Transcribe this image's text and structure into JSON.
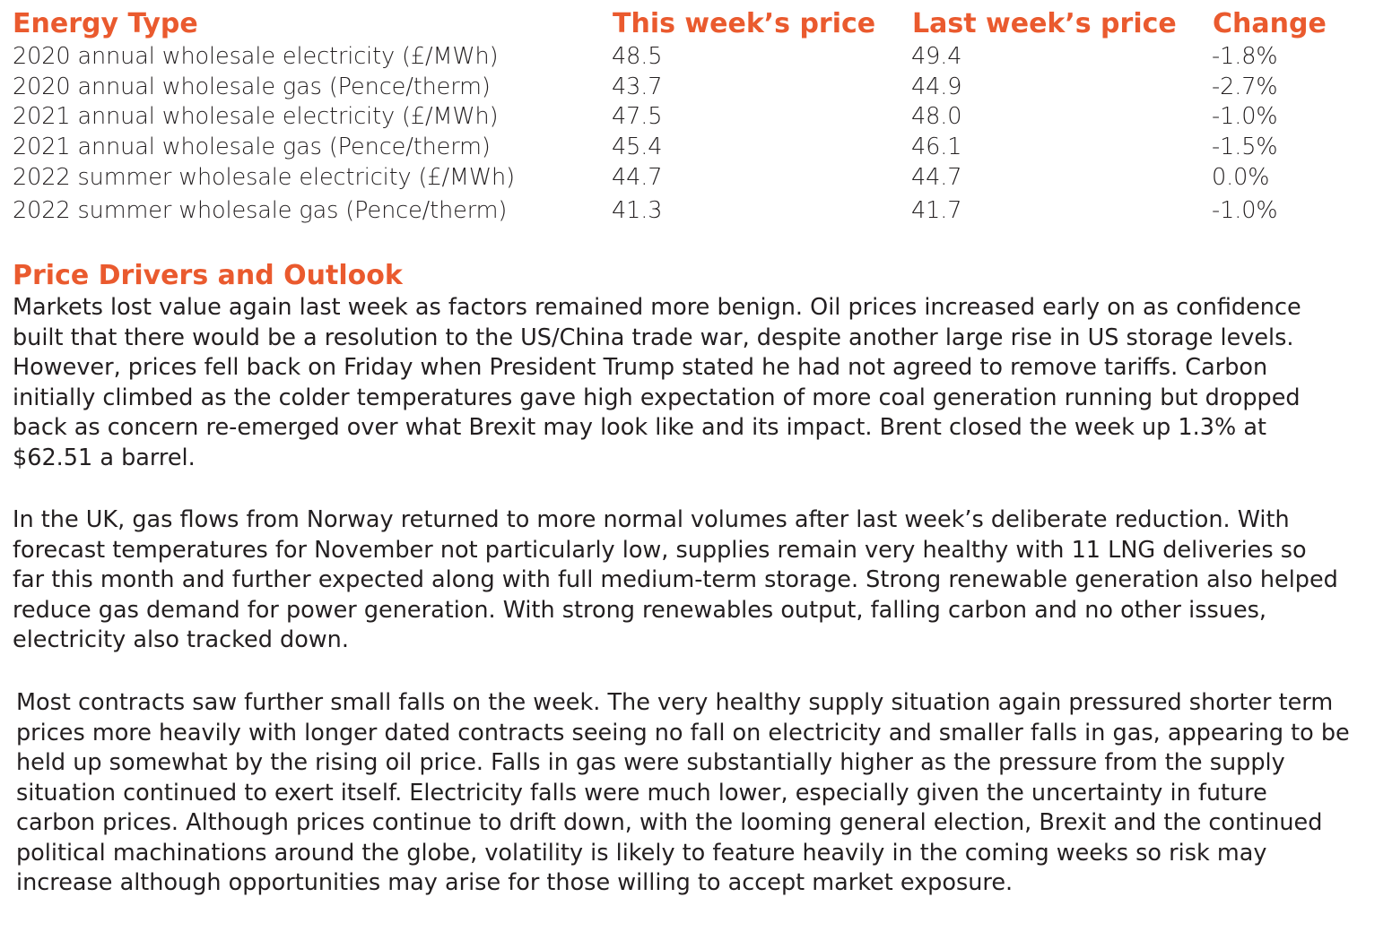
{
  "table": {
    "headers": [
      "Energy Type",
      "This week’s price",
      "Last week’s price",
      "Change"
    ],
    "rows": [
      [
        "2020 annual wholesale electricity (£/MWh)",
        "48.5",
        "49.4",
        "-1.8%"
      ],
      [
        "2020 annual wholesale gas (Pence/therm)",
        "43.7",
        "44.9",
        "-2.7%"
      ],
      [
        "2021 annual wholesale electricity (£/MWh)",
        "47.5",
        "48.0",
        "-1.0%"
      ],
      [
        "2021 annual wholesale gas (Pence/therm)",
        "45.4",
        "46.1",
        "-1.5%"
      ],
      [
        "2022 summer wholesale electricity (£/MWh)",
        "44.7",
        "44.7",
        "0.0%"
      ],
      [
        "2022 summer wholesale gas (Pence/therm)",
        "41.3",
        "41.7",
        "-1.0%"
      ]
    ]
  },
  "outlook": {
    "title": "Price Drivers and Outlook",
    "paragraphs": [
      "Markets lost value again last week as factors remained more benign. Oil prices increased early on as confidence\nbuilt that there would be a resolution to the US/China trade war, despite another large rise in US storage levels.\nHowever, prices fell back on Friday when President Trump stated he had not agreed to remove tariffs. Carbon\ninitially climbed as the colder temperatures gave high expectation of more coal generation running but dropped\nback as concern re-emerged over what Brexit may look like and its impact. Brent closed the week up 1.3% at\n$62.51 a barrel.",
      "In the UK, gas flows from Norway returned to more normal volumes after last week’s deliberate reduction. With\nforecast temperatures for November not particularly low, supplies remain very healthy with 11 LNG deliveries so\nfar this month and further expected along with full medium-term storage. Strong renewable generation also helped\nreduce gas demand for power generation. With strong renewables output, falling carbon and no other issues,\nelectricity also tracked down.",
      "Most contracts saw further small falls on the week. The very healthy supply situation again pressured shorter term\nprices more heavily with longer dated contracts seeing no fall on electricity and smaller falls in gas, appearing to be\nheld up somewhat by the rising oil price. Falls in gas were substantially higher as the pressure from the supply\nsituation continued to exert itself. Electricity falls were much lower, especially given the uncertainty in future\ncarbon prices. Although prices continue to drift down, with the looming general election, Brexit and the continued\npolitical machinations around the globe, volatility is likely to feature heavily in the coming weeks so risk may\nincrease although opportunities may arise for those willing to accept market exposure."
    ]
  }
}
